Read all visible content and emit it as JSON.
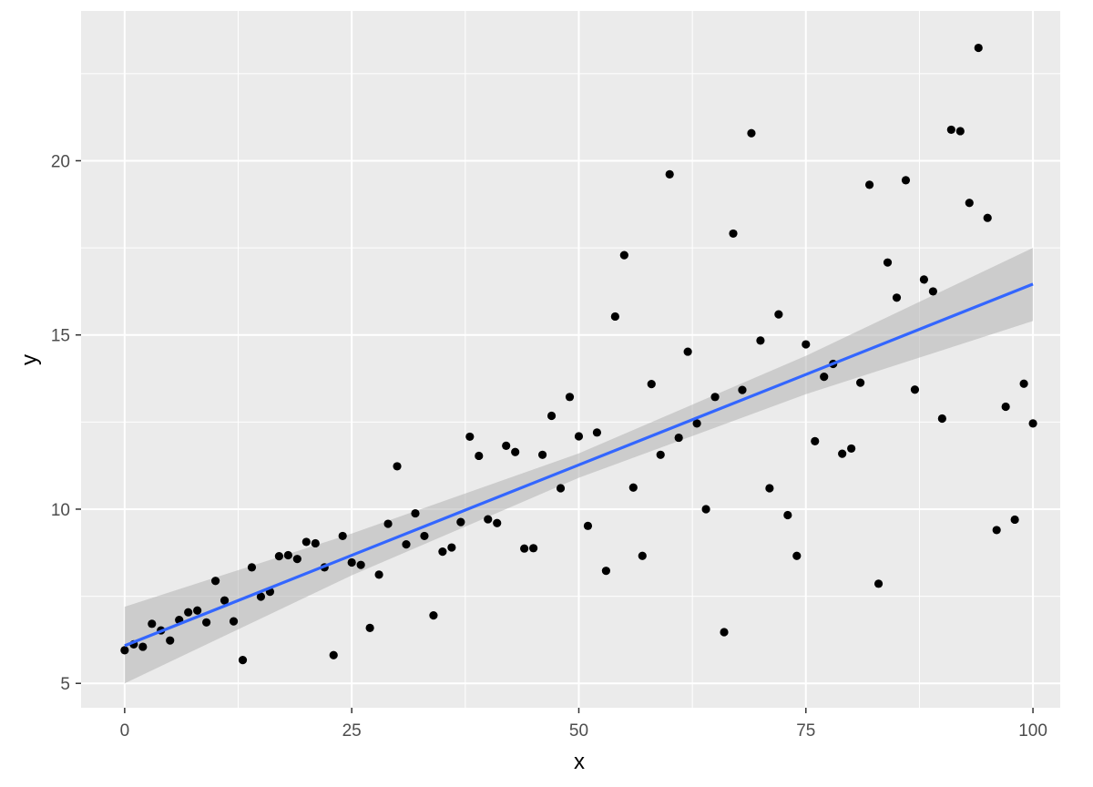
{
  "chart_data": {
    "type": "scatter",
    "xlabel": "x",
    "ylabel": "y",
    "xlim": [
      -4.8,
      103
    ],
    "ylim": [
      4.3,
      24.3
    ],
    "x_ticks": [
      0,
      25,
      50,
      75,
      100
    ],
    "x_tick_labels": [
      "0",
      "25",
      "50",
      "75",
      "100"
    ],
    "y_ticks": [
      5,
      10,
      15,
      20
    ],
    "y_tick_labels": [
      "5",
      "10",
      "15",
      "20"
    ],
    "grid": true,
    "legend": "none",
    "colors": {
      "panel": "#ebebeb",
      "grid": "#ffffff",
      "points": "#000000",
      "fit_line": "#3366ff",
      "confidence_band": "#b3b3b3"
    },
    "fit": {
      "method": "linear",
      "x": [
        0,
        100
      ],
      "y": [
        6.08,
        16.46
      ],
      "band": [
        {
          "x": 0,
          "lower": 5.0,
          "upper": 7.2
        },
        {
          "x": 25,
          "lower": 8.1,
          "upper": 9.3
        },
        {
          "x": 50,
          "lower": 10.9,
          "upper": 11.6
        },
        {
          "x": 75,
          "lower": 13.3,
          "upper": 14.4
        },
        {
          "x": 100,
          "lower": 15.4,
          "upper": 17.5
        }
      ]
    },
    "series": [
      {
        "x": [
          0,
          1,
          2,
          3,
          4,
          5,
          6,
          7,
          8,
          9,
          10,
          11,
          12,
          13,
          14,
          15,
          16,
          17,
          18,
          19,
          20,
          21,
          22,
          23,
          24,
          25,
          26,
          27,
          28,
          29,
          30,
          31,
          32,
          33,
          34,
          35,
          36,
          37,
          38,
          39,
          40,
          41,
          42,
          43,
          44,
          45,
          46,
          47,
          48,
          49,
          50,
          51,
          52,
          53,
          54,
          55,
          56,
          57,
          58,
          59,
          60,
          61,
          62,
          63,
          64,
          65,
          66,
          67,
          68,
          69,
          70,
          71,
          72,
          73,
          74,
          75,
          76,
          77,
          78,
          79,
          80,
          81,
          82,
          83,
          84,
          85,
          86,
          87,
          88,
          89,
          90,
          91,
          92,
          93,
          94,
          95,
          96,
          97,
          98,
          99,
          100
        ],
        "y": [
          5.95,
          6.12,
          6.05,
          6.71,
          6.52,
          6.23,
          6.82,
          7.04,
          7.09,
          6.75,
          7.94,
          7.38,
          6.78,
          5.67,
          8.33,
          7.49,
          7.63,
          8.65,
          8.68,
          8.57,
          9.06,
          9.02,
          8.33,
          5.81,
          9.23,
          8.47,
          8.4,
          6.59,
          8.12,
          9.58,
          11.23,
          8.99,
          9.88,
          9.23,
          6.95,
          8.78,
          8.9,
          9.63,
          12.08,
          11.53,
          9.71,
          9.6,
          11.82,
          11.64,
          8.87,
          8.88,
          11.56,
          12.68,
          10.6,
          13.22,
          12.09,
          9.52,
          12.2,
          8.23,
          15.53,
          17.29,
          10.62,
          8.66,
          13.59,
          11.56,
          19.61,
          12.05,
          14.52,
          12.46,
          10.0,
          13.22,
          6.47,
          17.91,
          13.42,
          20.79,
          14.84,
          10.6,
          15.59,
          9.83,
          8.66,
          14.73,
          11.95,
          13.8,
          14.17,
          11.59,
          11.74,
          13.63,
          19.31,
          7.86,
          17.08,
          16.07,
          19.44,
          13.43,
          16.59,
          16.25,
          12.6,
          20.89,
          20.85,
          18.79,
          23.24,
          18.36,
          9.4,
          12.94,
          9.7,
          13.6,
          12.46
        ]
      }
    ]
  }
}
